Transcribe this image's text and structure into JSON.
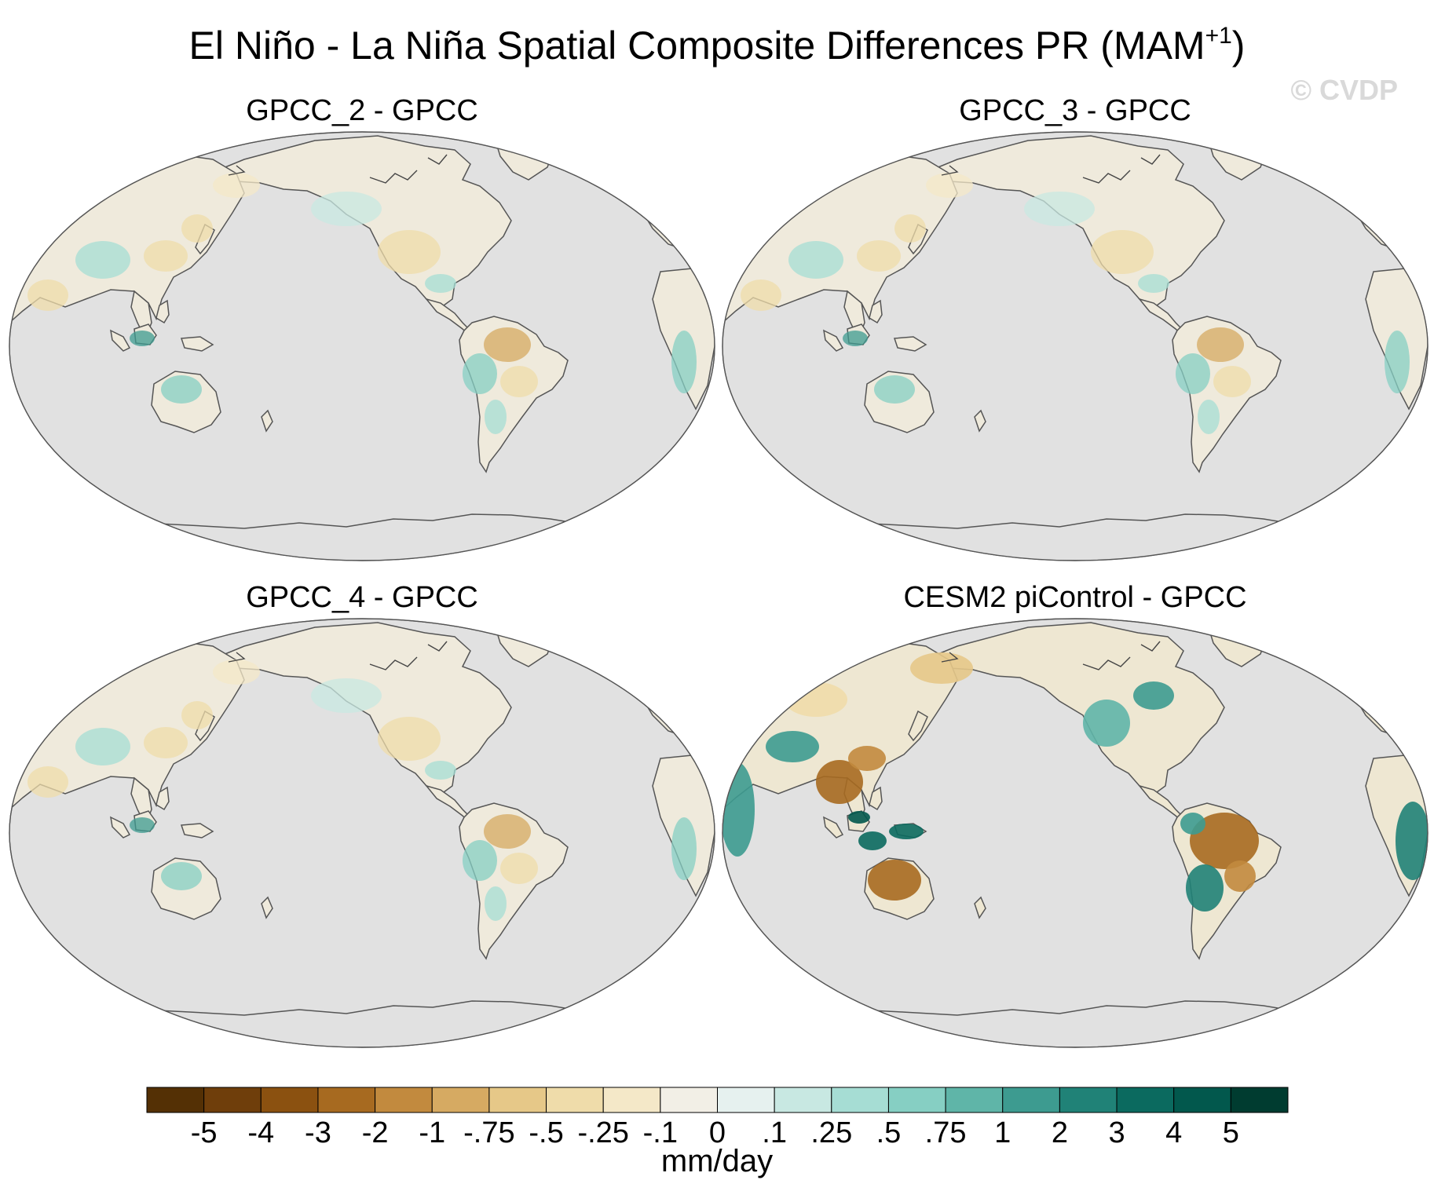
{
  "figure": {
    "title": "El Niño - La Niña Spatial Composite Differences PR (MAM",
    "title_superscript": "+1",
    "title_suffix": ")",
    "watermark": "© CVDP"
  },
  "panels": [
    {
      "title": "GPCC_2 - GPCC",
      "intensity": "weak"
    },
    {
      "title": "GPCC_3 - GPCC",
      "intensity": "weak"
    },
    {
      "title": "GPCC_4 - GPCC",
      "intensity": "weak"
    },
    {
      "title": "CESM2 piControl - GPCC",
      "intensity": "strong"
    }
  ],
  "colorbar": {
    "units": "mm/day",
    "labels": [
      "-5",
      "-4",
      "-3",
      "-2",
      "-1",
      "-.75",
      "-.5",
      "-.25",
      "-.1",
      "0",
      ".1",
      ".25",
      ".5",
      ".75",
      "1",
      "2",
      "3",
      "4",
      "5"
    ],
    "colors": [
      "#543005",
      "#6f3e0b",
      "#8b5110",
      "#a76a20",
      "#c28a3e",
      "#d6aa62",
      "#e6c888",
      "#efdcaa",
      "#f4e8c8",
      "#f2efe6",
      "#e6f1ef",
      "#c8e8e2",
      "#a6ddd4",
      "#86cfc3",
      "#5fb5a8",
      "#3d9b90",
      "#208277",
      "#0b6a5f",
      "#02584d",
      "#003c30"
    ]
  },
  "map": {
    "ocean_color": "#e1e1e1",
    "coast_color": "#444444"
  }
}
